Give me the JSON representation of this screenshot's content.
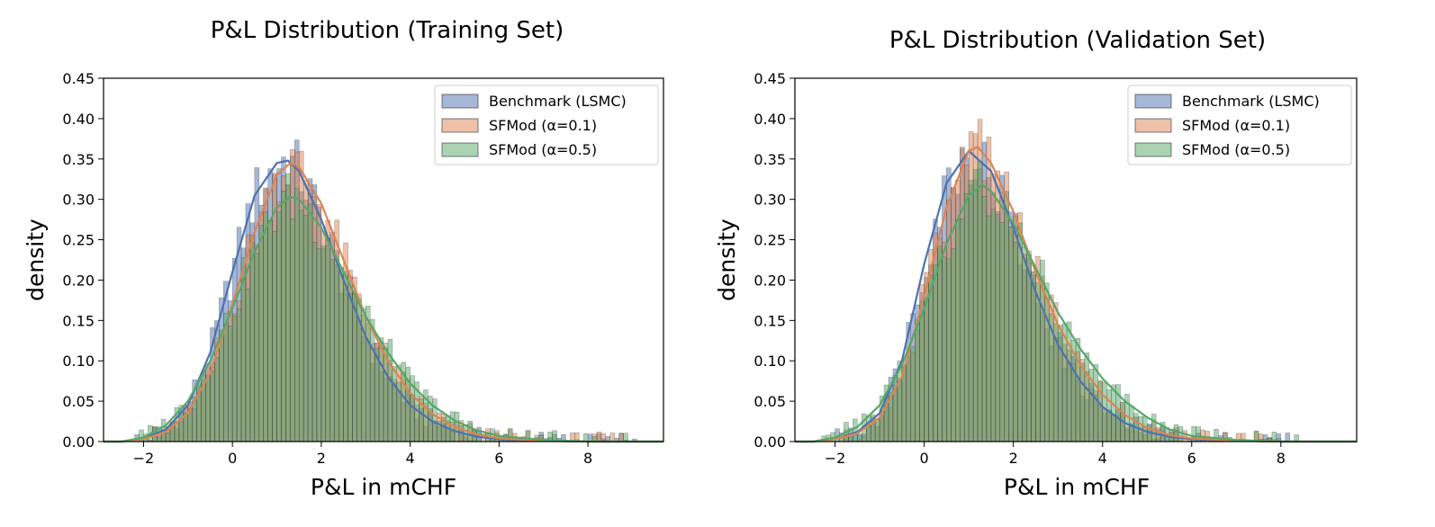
{
  "chart_data": [
    {
      "type": "histogram",
      "title": "P&L Distribution (Training Set)",
      "xlabel": "P&L in mCHF",
      "ylabel": "density",
      "xlim": [
        -2.9,
        9.7
      ],
      "ylim": [
        0,
        0.45
      ],
      "xticks": [
        -2,
        0,
        2,
        4,
        6,
        8
      ],
      "xtick_labels": [
        "−2",
        "0",
        "2",
        "4",
        "6",
        "8"
      ],
      "yticks": [
        0.0,
        0.05,
        0.1,
        0.15,
        0.2,
        0.25,
        0.3,
        0.35,
        0.4,
        0.45
      ],
      "ytick_labels": [
        "0.00",
        "0.05",
        "0.10",
        "0.15",
        "0.20",
        "0.25",
        "0.30",
        "0.35",
        "0.40",
        "0.45"
      ],
      "legend_position": "top-right",
      "bin_width": 0.1,
      "series": [
        {
          "name": "Benchmark (LSMC)",
          "color": "#4c72b0",
          "peak": 1.1,
          "kde": [
            [
              -2.5,
              0.0
            ],
            [
              -2.0,
              0.004
            ],
            [
              -1.5,
              0.015
            ],
            [
              -1.0,
              0.045
            ],
            [
              -0.5,
              0.11
            ],
            [
              0.0,
              0.21
            ],
            [
              0.5,
              0.305
            ],
            [
              1.0,
              0.345
            ],
            [
              1.25,
              0.348
            ],
            [
              1.5,
              0.335
            ],
            [
              2.0,
              0.275
            ],
            [
              2.5,
              0.2
            ],
            [
              3.0,
              0.13
            ],
            [
              3.5,
              0.08
            ],
            [
              4.0,
              0.045
            ],
            [
              4.5,
              0.025
            ],
            [
              5.0,
              0.013
            ],
            [
              5.5,
              0.006
            ],
            [
              6.0,
              0.003
            ],
            [
              7.0,
              0.001
            ],
            [
              8.0,
              0.0
            ],
            [
              9.7,
              0.0
            ]
          ],
          "bin_range": [
            -2.3,
            9.1
          ]
        },
        {
          "name": "SFMod (α=0.1)",
          "color": "#dd8452",
          "peak": 1.3,
          "kde": [
            [
              -2.5,
              0.0
            ],
            [
              -2.0,
              0.003
            ],
            [
              -1.5,
              0.012
            ],
            [
              -1.0,
              0.035
            ],
            [
              -0.5,
              0.085
            ],
            [
              0.0,
              0.17
            ],
            [
              0.5,
              0.26
            ],
            [
              1.0,
              0.33
            ],
            [
              1.3,
              0.345
            ],
            [
              1.5,
              0.34
            ],
            [
              2.0,
              0.295
            ],
            [
              2.5,
              0.225
            ],
            [
              3.0,
              0.155
            ],
            [
              3.5,
              0.1
            ],
            [
              4.0,
              0.06
            ],
            [
              4.5,
              0.034
            ],
            [
              5.0,
              0.018
            ],
            [
              5.5,
              0.009
            ],
            [
              6.0,
              0.004
            ],
            [
              7.0,
              0.001
            ],
            [
              8.0,
              0.0
            ],
            [
              9.7,
              0.0
            ]
          ],
          "bin_range": [
            -2.2,
            8.9
          ]
        },
        {
          "name": "SFMod (α=0.5)",
          "color": "#55a868",
          "peak": 1.3,
          "kde": [
            [
              -2.5,
              0.0
            ],
            [
              -2.0,
              0.005
            ],
            [
              -1.5,
              0.02
            ],
            [
              -1.0,
              0.05
            ],
            [
              -0.5,
              0.1
            ],
            [
              0.0,
              0.165
            ],
            [
              0.5,
              0.235
            ],
            [
              1.0,
              0.29
            ],
            [
              1.3,
              0.303
            ],
            [
              1.5,
              0.3
            ],
            [
              2.0,
              0.265
            ],
            [
              2.5,
              0.21
            ],
            [
              3.0,
              0.155
            ],
            [
              3.5,
              0.11
            ],
            [
              4.0,
              0.072
            ],
            [
              4.5,
              0.045
            ],
            [
              5.0,
              0.026
            ],
            [
              5.5,
              0.014
            ],
            [
              6.0,
              0.007
            ],
            [
              7.0,
              0.002
            ],
            [
              8.0,
              0.0
            ],
            [
              9.7,
              0.0
            ]
          ],
          "bin_range": [
            -2.4,
            9.2
          ]
        }
      ]
    },
    {
      "type": "histogram",
      "title": "P&L Distribution (Validation Set)",
      "xlabel": "P&L in mCHF",
      "ylabel": "density",
      "xlim": [
        -2.9,
        9.7
      ],
      "ylim": [
        0,
        0.45
      ],
      "xticks": [
        -2,
        0,
        2,
        4,
        6,
        8
      ],
      "xtick_labels": [
        "−2",
        "0",
        "2",
        "4",
        "6",
        "8"
      ],
      "yticks": [
        0.0,
        0.05,
        0.1,
        0.15,
        0.2,
        0.25,
        0.3,
        0.35,
        0.4,
        0.45
      ],
      "ytick_labels": [
        "0.00",
        "0.05",
        "0.10",
        "0.15",
        "0.20",
        "0.25",
        "0.30",
        "0.35",
        "0.40",
        "0.45"
      ],
      "legend_position": "top-right",
      "bin_width": 0.1,
      "series": [
        {
          "name": "Benchmark (LSMC)",
          "color": "#4c72b0",
          "peak": 1.0,
          "kde": [
            [
              -2.5,
              0.0
            ],
            [
              -2.0,
              0.003
            ],
            [
              -1.5,
              0.012
            ],
            [
              -1.0,
              0.035
            ],
            [
              -0.5,
              0.1
            ],
            [
              0.0,
              0.22
            ],
            [
              0.5,
              0.32
            ],
            [
              1.0,
              0.36
            ],
            [
              1.5,
              0.335
            ],
            [
              2.0,
              0.265
            ],
            [
              2.5,
              0.185
            ],
            [
              3.0,
              0.12
            ],
            [
              3.5,
              0.075
            ],
            [
              4.0,
              0.043
            ],
            [
              4.5,
              0.023
            ],
            [
              5.0,
              0.012
            ],
            [
              5.5,
              0.006
            ],
            [
              6.0,
              0.003
            ],
            [
              7.0,
              0.001
            ],
            [
              8.0,
              0.0
            ],
            [
              9.7,
              0.0
            ]
          ],
          "bin_range": [
            -2.1,
            8.3
          ]
        },
        {
          "name": "SFMod (α=0.1)",
          "color": "#dd8452",
          "peak": 1.1,
          "kde": [
            [
              -2.5,
              0.0
            ],
            [
              -2.0,
              0.003
            ],
            [
              -1.5,
              0.01
            ],
            [
              -1.0,
              0.03
            ],
            [
              -0.5,
              0.08
            ],
            [
              0.0,
              0.18
            ],
            [
              0.5,
              0.29
            ],
            [
              1.0,
              0.36
            ],
            [
              1.2,
              0.365
            ],
            [
              1.5,
              0.345
            ],
            [
              2.0,
              0.285
            ],
            [
              2.5,
              0.21
            ],
            [
              3.0,
              0.145
            ],
            [
              3.5,
              0.095
            ],
            [
              4.0,
              0.058
            ],
            [
              4.5,
              0.033
            ],
            [
              5.0,
              0.017
            ],
            [
              5.5,
              0.008
            ],
            [
              6.0,
              0.004
            ],
            [
              7.0,
              0.001
            ],
            [
              8.0,
              0.0
            ],
            [
              9.7,
              0.0
            ]
          ],
          "bin_range": [
            -2.0,
            8.0
          ]
        },
        {
          "name": "SFMod (α=0.5)",
          "color": "#55a868",
          "peak": 1.2,
          "kde": [
            [
              -2.5,
              0.0
            ],
            [
              -2.0,
              0.005
            ],
            [
              -1.5,
              0.018
            ],
            [
              -1.0,
              0.045
            ],
            [
              -0.5,
              0.095
            ],
            [
              0.0,
              0.165
            ],
            [
              0.5,
              0.245
            ],
            [
              1.0,
              0.305
            ],
            [
              1.3,
              0.318
            ],
            [
              1.5,
              0.31
            ],
            [
              2.0,
              0.27
            ],
            [
              2.5,
              0.215
            ],
            [
              3.0,
              0.16
            ],
            [
              3.5,
              0.115
            ],
            [
              4.0,
              0.078
            ],
            [
              4.5,
              0.05
            ],
            [
              5.0,
              0.03
            ],
            [
              5.5,
              0.015
            ],
            [
              6.0,
              0.007
            ],
            [
              7.0,
              0.002
            ],
            [
              8.0,
              0.0
            ],
            [
              9.7,
              0.0
            ]
          ],
          "bin_range": [
            -2.3,
            8.4
          ]
        }
      ]
    }
  ]
}
